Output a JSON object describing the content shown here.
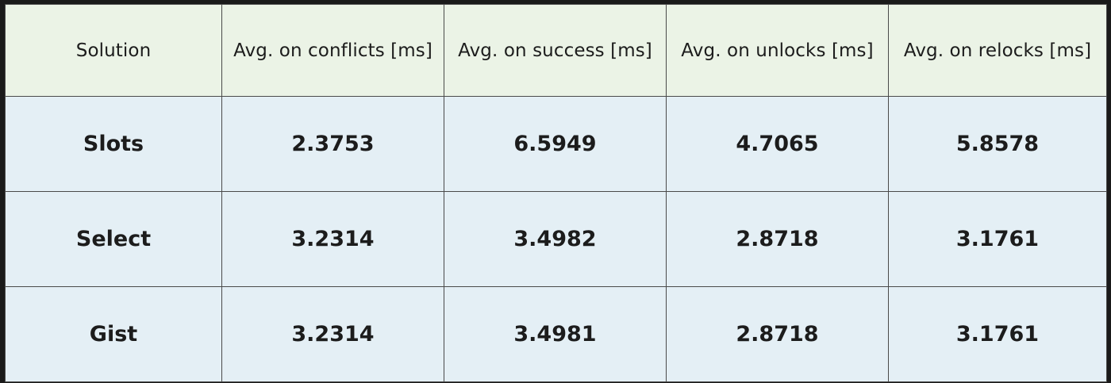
{
  "colors": {
    "header_background": "#ebf3e6",
    "body_background": "#e4eff5",
    "border": "#4a4a4a",
    "frame": "#1a1a1a",
    "text": "#1c1c1c"
  },
  "chart_data": {
    "type": "table",
    "columns": [
      "Solution",
      "Avg. on conflicts [ms]",
      "Avg. on success [ms]",
      "Avg. on unlocks [ms]",
      "Avg. on relocks [ms]"
    ],
    "rows": [
      [
        "Slots",
        "2.3753",
        "6.5949",
        "4.7065",
        "5.8578"
      ],
      [
        "Select",
        "3.2314",
        "3.4982",
        "2.8718",
        "3.1761"
      ],
      [
        "Gist",
        "3.2314",
        "3.4981",
        "2.8718",
        "3.1761"
      ]
    ]
  }
}
